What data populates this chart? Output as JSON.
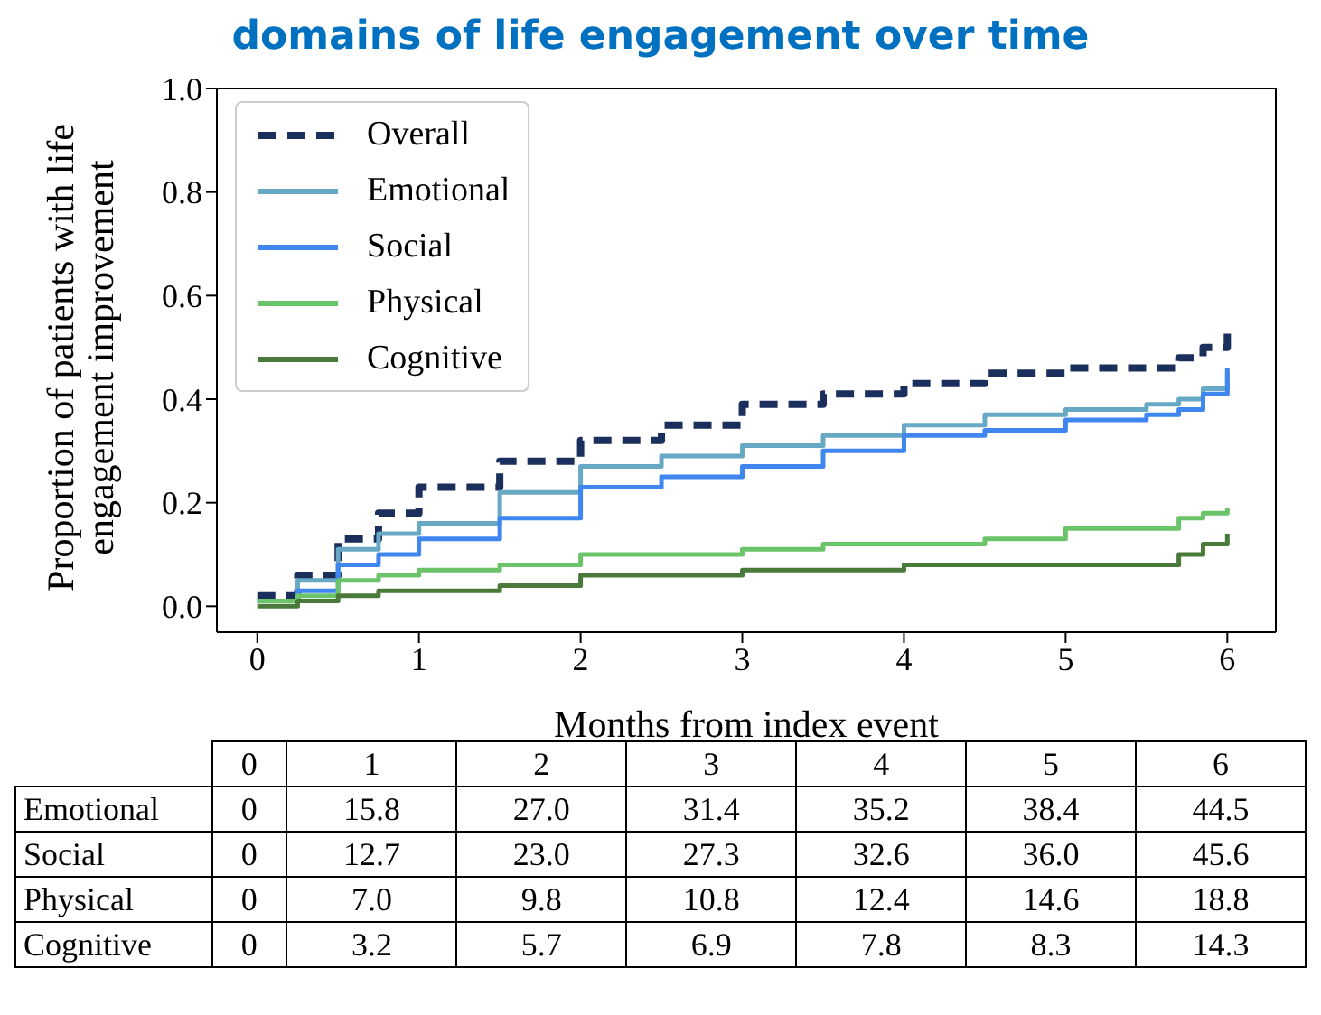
{
  "chart_data": [
    {
      "type": "step",
      "title": "domains of life engagement over time",
      "xlabel": "Months from index event",
      "ylabel": "Proportion of patients with life engagement improvement",
      "x": [
        0,
        0.25,
        0.5,
        0.75,
        1,
        1.5,
        2,
        2.5,
        3,
        3.5,
        4,
        4.5,
        5,
        5.5,
        5.7,
        5.85,
        6
      ],
      "series": [
        {
          "name": "Overall",
          "color": "#1b2f5c",
          "line_style": "dashed",
          "values": [
            0.02,
            0.06,
            0.13,
            0.18,
            0.23,
            0.28,
            0.32,
            0.35,
            0.39,
            0.41,
            0.43,
            0.45,
            0.46,
            0.46,
            0.48,
            0.5,
            0.53
          ]
        },
        {
          "name": "Emotional",
          "color": "#67a9c4",
          "values": [
            0.01,
            0.05,
            0.11,
            0.14,
            0.16,
            0.22,
            0.27,
            0.29,
            0.31,
            0.33,
            0.35,
            0.37,
            0.38,
            0.39,
            0.4,
            0.42,
            0.45
          ]
        },
        {
          "name": "Social",
          "color": "#3f86f0",
          "values": [
            0.01,
            0.03,
            0.08,
            0.1,
            0.13,
            0.17,
            0.23,
            0.25,
            0.27,
            0.3,
            0.33,
            0.34,
            0.36,
            0.37,
            0.38,
            0.41,
            0.46
          ]
        },
        {
          "name": "Physical",
          "color": "#6cc46a",
          "values": [
            0.01,
            0.02,
            0.05,
            0.06,
            0.07,
            0.08,
            0.1,
            0.1,
            0.11,
            0.12,
            0.12,
            0.13,
            0.15,
            0.15,
            0.17,
            0.18,
            0.19
          ]
        },
        {
          "name": "Cognitive",
          "color": "#4a7a3a",
          "values": [
            0.0,
            0.01,
            0.02,
            0.03,
            0.03,
            0.04,
            0.06,
            0.06,
            0.07,
            0.07,
            0.08,
            0.08,
            0.08,
            0.08,
            0.1,
            0.12,
            0.14
          ]
        }
      ],
      "xlim": [
        -0.25,
        6.3
      ],
      "xticks": [
        0,
        1,
        2,
        3,
        4,
        5,
        6
      ],
      "ylim": [
        -0.05,
        1.0
      ],
      "yticks": [
        {
          "value": 0,
          "label": "0.0"
        },
        {
          "value": 0.2,
          "label": "0.2"
        },
        {
          "value": 0.4,
          "label": "0.4"
        },
        {
          "value": 0.6,
          "label": "0.6"
        },
        {
          "value": 0.8,
          "label": "0.8"
        },
        {
          "value": 1.0,
          "label": "1.0"
        }
      ],
      "legend": "top left"
    },
    {
      "type": "heatmap",
      "categories": [
        "0",
        "1",
        "2",
        "3",
        "4",
        "5",
        "6"
      ],
      "y_categories": [
        "Emotional",
        "Social",
        "Physical",
        "Cognitive"
      ],
      "cells": [
        [
          0,
          15.8,
          27.0,
          31.4,
          35.2,
          38.4,
          44.5
        ],
        [
          0,
          12.7,
          23.0,
          27.3,
          32.6,
          36.0,
          45.6
        ],
        [
          0,
          7.0,
          9.8,
          10.8,
          12.4,
          14.6,
          18.8
        ],
        [
          0,
          3.2,
          5.7,
          6.9,
          7.8,
          8.3,
          14.3
        ]
      ],
      "cell_labels": [
        [
          "0",
          "15.8",
          "27.0",
          "31.4",
          "35.2",
          "38.4",
          "44.5"
        ],
        [
          "0",
          "12.7",
          "23.0",
          "27.3",
          "32.6",
          "36.0",
          "45.6"
        ],
        [
          "0",
          "7.0",
          "9.8",
          "10.8",
          "12.4",
          "14.6",
          "18.8"
        ],
        [
          "0",
          "3.2",
          "5.7",
          "6.9",
          "7.8",
          "8.3",
          "14.3"
        ]
      ]
    }
  ]
}
